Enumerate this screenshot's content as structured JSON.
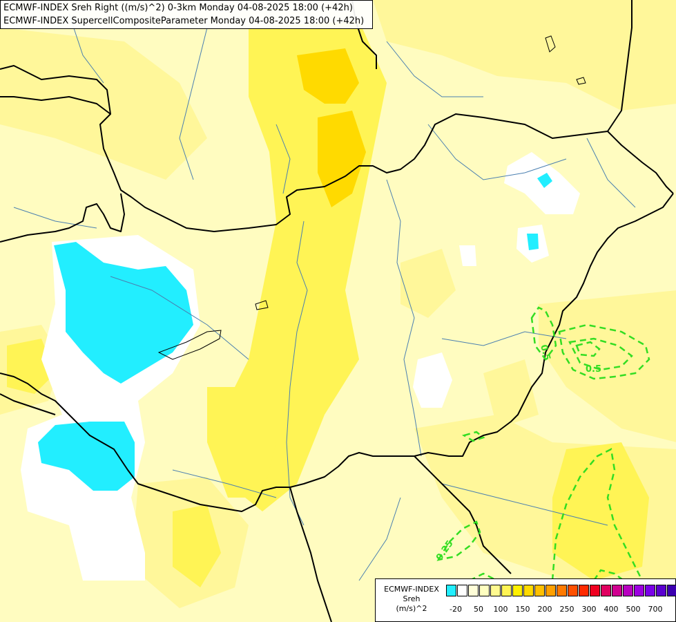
{
  "title": {
    "line1": "ECMWF-INDEX Sreh Right ((m/s)^2) 0-3km Monday 04-08-2025 18:00 (+42h)",
    "line2": "ECMWF-INDEX SupercellCompositeParameter Monday 04-08-2025 18:00 (+42h)"
  },
  "legend": {
    "source": "ECMWF-INDEX",
    "variable": "Sreh",
    "unit": "(m/s)^2",
    "swatch_colors": [
      "#22eeff",
      "#ffffff",
      "#fffed8",
      "#ffffc0",
      "#fffa90",
      "#fff455",
      "#fff000",
      "#ffda00",
      "#ffc000",
      "#ffa000",
      "#ff7a00",
      "#ff5000",
      "#ff2a00",
      "#f00020",
      "#e00060",
      "#d00090",
      "#b800c0",
      "#9c00e0",
      "#7a00e8",
      "#5a00d0",
      "#3c00b0",
      "#200090"
    ],
    "tick_labels": [
      "-20",
      "50",
      "100",
      "150",
      "200",
      "250",
      "300",
      "400",
      "500",
      "700"
    ]
  },
  "contour_labels": {
    "upper_left": "0.5",
    "upper_right": "0.5",
    "lower": "0.25"
  },
  "colors": {
    "land_base": "#fffcc0",
    "sreh_low_white": "#ffffff",
    "sreh_cyan": "#22eeff",
    "sreh_yellow": "#fff455",
    "sreh_orange": "#ffda00",
    "scp_contour": "#33dd22",
    "border": "#000000",
    "river": "#4a7fb0"
  }
}
